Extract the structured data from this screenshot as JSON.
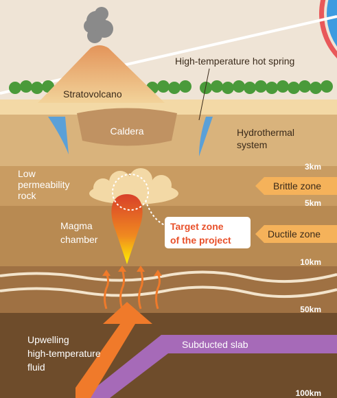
{
  "labels": {
    "hot_spring": "High-temperature hot spring",
    "stratovolcano": "Stratovolcano",
    "caldera": "Caldera",
    "hydrothermal": [
      "Hydrothermal",
      "system"
    ],
    "low_permeability": [
      "Low",
      "permeability",
      "rock"
    ],
    "magma_chamber": [
      "Magma",
      "chamber"
    ],
    "target_zone": [
      "Target zone",
      "of the project"
    ],
    "brittle_zone": "Brittle zone",
    "ductile_zone": "Ductile zone",
    "upwelling": [
      "Upwelling",
      "high-temperature",
      "fluid"
    ],
    "subducted_slab": "Subducted slab"
  },
  "depths": [
    "3km",
    "5km",
    "10km",
    "50km",
    "100km"
  ]
}
